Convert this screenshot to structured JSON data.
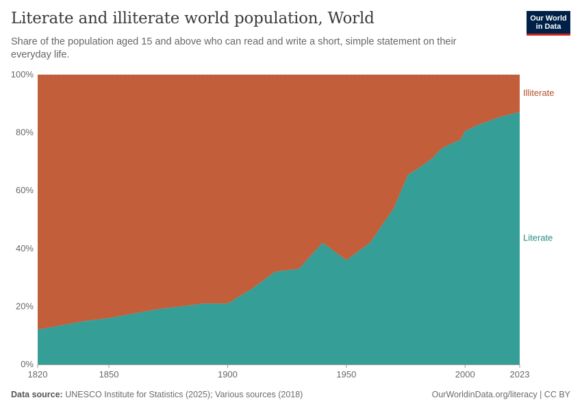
{
  "header": {
    "title": "Literate and illiterate world population, World",
    "subtitle": "Share of the population aged 15 and above who can read and write a short, simple statement on their everyday life.",
    "logo_line1": "Our World",
    "logo_line2": "in Data"
  },
  "footer": {
    "source_label": "Data source:",
    "source_text": "UNESCO Institute for Statistics (2025); Various sources (2018)",
    "link_text": "OurWorldinData.org/literacy | CC BY"
  },
  "chart_data": {
    "type": "area",
    "stacked": true,
    "stack_percent": true,
    "x": [
      1820,
      1830,
      1840,
      1850,
      1860,
      1870,
      1880,
      1890,
      1900,
      1910,
      1920,
      1930,
      1940,
      1950,
      1960,
      1970,
      1976,
      1980,
      1986,
      1990,
      1995,
      1998,
      2000,
      2005,
      2010,
      2015,
      2020,
      2023
    ],
    "series": [
      {
        "name": "Literate",
        "color": "#349e97",
        "values": [
          12,
          13.5,
          15,
          16,
          17.5,
          19,
          20,
          21,
          21,
          26,
          32,
          33,
          42,
          36,
          42,
          54,
          65.5,
          67.5,
          71,
          74.5,
          76.5,
          77.5,
          80.5,
          82.5,
          84,
          85.5,
          86.5,
          87.2
        ]
      },
      {
        "name": "Illiterate",
        "color": "#c25e39",
        "values": [
          88,
          86.5,
          85,
          84,
          82.5,
          81,
          80,
          79,
          79,
          74,
          68,
          67,
          58,
          64,
          58,
          46,
          34.5,
          32.5,
          29,
          25.5,
          23.5,
          22.5,
          19.5,
          17.5,
          16,
          14.5,
          13.5,
          12.8
        ]
      }
    ],
    "xlim": [
      1820,
      2023
    ],
    "ylim": [
      0,
      100
    ],
    "y_ticks": [
      0,
      20,
      40,
      60,
      80,
      100
    ],
    "y_tick_labels": [
      "0%",
      "20%",
      "40%",
      "60%",
      "80%",
      "100%"
    ],
    "x_ticks": [
      1820,
      1850,
      1900,
      1950,
      2000,
      2023
    ],
    "x_tick_labels": [
      "1820",
      "1850",
      "1900",
      "1950",
      "2000",
      "2023"
    ],
    "grid": "horizontal dashed",
    "legend": "right, inline labels"
  }
}
